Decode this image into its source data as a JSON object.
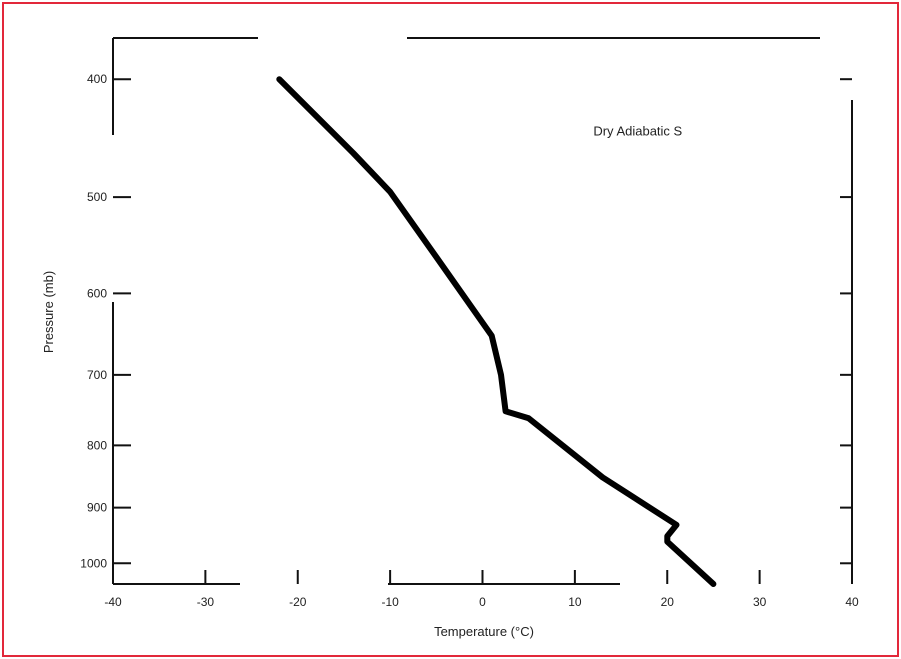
{
  "chart_data": {
    "type": "line",
    "title": "",
    "xlabel": "Temperature (°C)",
    "ylabel": "Pressure (mb)",
    "xlim": [
      -40,
      40
    ],
    "ylim_pressure": [
      1040,
      370
    ],
    "y_scale": "log",
    "x_ticks": [
      {
        "value": -40,
        "label": "-40"
      },
      {
        "value": -30,
        "label": "-30"
      },
      {
        "value": -20,
        "label": "-20"
      },
      {
        "value": -10,
        "label": "-10"
      },
      {
        "value": 0,
        "label": "0"
      },
      {
        "value": 10,
        "label": "10"
      },
      {
        "value": 20,
        "label": "20"
      },
      {
        "value": 30,
        "label": "30"
      },
      {
        "value": 40,
        "label": "40"
      }
    ],
    "y_ticks": [
      {
        "value": 400,
        "label": "400"
      },
      {
        "value": 500,
        "label": "500"
      },
      {
        "value": 600,
        "label": "600"
      },
      {
        "value": 700,
        "label": "700"
      },
      {
        "value": 800,
        "label": "800"
      },
      {
        "value": 900,
        "label": "900"
      },
      {
        "value": 1000,
        "label": "1000"
      }
    ],
    "annotations": [
      {
        "text": "Dry Adiabatic S",
        "x": 12,
        "p": 445
      }
    ],
    "series": [
      {
        "points": [
          {
            "t": -22,
            "p": 400
          },
          {
            "t": -14,
            "p": 460
          },
          {
            "t": -10,
            "p": 495
          },
          {
            "t": -5,
            "p": 560
          },
          {
            "t": 1,
            "p": 650
          },
          {
            "t": 2,
            "p": 700
          },
          {
            "t": 2.5,
            "p": 750
          },
          {
            "t": 5,
            "p": 760
          },
          {
            "t": 13,
            "p": 850
          },
          {
            "t": 21,
            "p": 930
          },
          {
            "t": 20,
            "p": 950
          },
          {
            "t": 20,
            "p": 960
          },
          {
            "t": 25,
            "p": 1040
          }
        ]
      }
    ],
    "grid": false,
    "legend": "none"
  }
}
